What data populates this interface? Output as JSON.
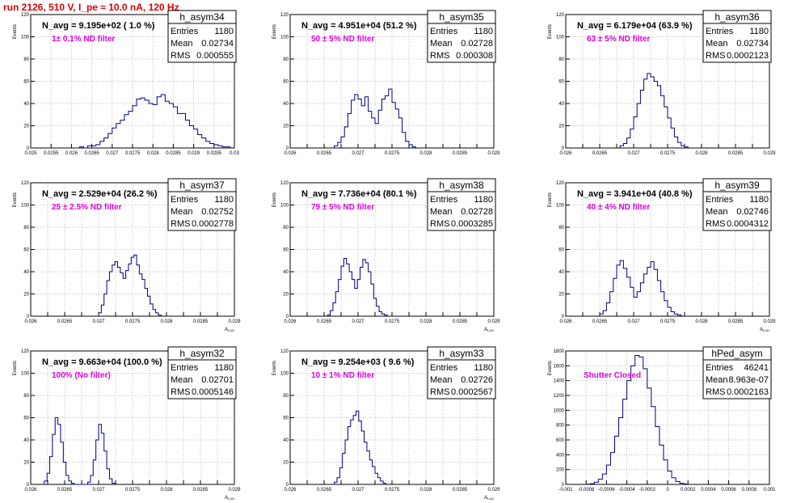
{
  "run_title": "run 2126,   510 V, I_pe ≈ 10.0 nA, 120 Hz",
  "chart_data": [
    {
      "type": "bar",
      "name": "h_asym34",
      "navg": "N_avg = 9.195e+02 ( 1.0 %)",
      "filter": "1± 0.1% ND filter",
      "stats": {
        "entries": "1180",
        "mean": "0.02734",
        "rms": "0.000555"
      },
      "xlim": [
        0.025,
        0.03
      ],
      "ylim": [
        0,
        120
      ],
      "xticks": [
        "0.025",
        "0.0255",
        "0.026",
        "0.0265",
        "0.027",
        "0.0275",
        "0.028",
        "0.0285",
        "0.029",
        "0.0295",
        "0.03"
      ],
      "yticks": [
        "0",
        "20",
        "40",
        "60",
        "80",
        "100",
        "120"
      ],
      "xlabel": "",
      "ylabel": "Events",
      "bins": {
        "lo": 0.0262,
        "width": 0.0001,
        "counts": [
          1,
          0,
          2,
          2,
          3,
          6,
          9,
          13,
          18,
          22,
          25,
          30,
          33,
          38,
          44,
          45,
          43,
          40,
          39,
          46,
          48,
          42,
          40,
          37,
          31,
          31,
          25,
          20,
          17,
          12,
          9,
          6,
          4,
          3,
          2,
          1,
          1
        ]
      }
    },
    {
      "type": "bar",
      "name": "h_asym35",
      "navg": "N_avg = 4.951e+04 (51.2 %)",
      "filter": "50 ± 5% ND filter",
      "stats": {
        "entries": "1180",
        "mean": "0.02728",
        "rms": "0.000308"
      },
      "xlim": [
        0.026,
        0.029
      ],
      "ylim": [
        0,
        120
      ],
      "xticks": [
        "0.026",
        "",
        "0.0265",
        "",
        "0.027",
        "",
        "0.0275",
        "",
        "0.028",
        "",
        "0.0285",
        "",
        "0.029"
      ],
      "yticks": [
        "0",
        "20",
        "40",
        "60",
        "80",
        "100",
        "120"
      ],
      "xlabel": "",
      "ylabel": "Events",
      "bins": {
        "lo": 0.02665,
        "width": 5e-05,
        "counts": [
          2,
          5,
          10,
          19,
          31,
          43,
          48,
          44,
          38,
          46,
          33,
          27,
          22,
          34,
          44,
          47,
          53,
          41,
          35,
          27,
          14,
          6,
          3,
          1
        ]
      }
    },
    {
      "type": "bar",
      "name": "h_asym36",
      "navg": "N_avg = 6.179e+04 (63.9 %)",
      "filter": "63 ± 5% ND filter",
      "stats": {
        "entries": "1180",
        "mean": "0.02734",
        "rms": "0.0002123"
      },
      "xlim": [
        0.026,
        0.029
      ],
      "ylim": [
        0,
        120
      ],
      "xticks": [
        "0.026",
        "",
        "0.0265",
        "",
        "0.027",
        "",
        "0.0275",
        "",
        "0.028",
        "",
        "0.0285",
        "",
        "0.029"
      ],
      "yticks": [
        "0",
        "20",
        "40",
        "60",
        "80",
        "100",
        "120"
      ],
      "xlabel": "",
      "ylabel": "Events",
      "bins": {
        "lo": 0.0268,
        "width": 5e-05,
        "counts": [
          2,
          4,
          9,
          17,
          28,
          40,
          52,
          62,
          67,
          64,
          60,
          56,
          47,
          37,
          27,
          18,
          10,
          5,
          2,
          1
        ]
      }
    },
    {
      "type": "bar",
      "name": "h_asym37",
      "navg": "N_avg = 2.529e+04 (26.2 %)",
      "filter": "25 ± 2.5% ND filter",
      "stats": {
        "entries": "1180",
        "mean": "0.02752",
        "rms": "0.0002778"
      },
      "xlim": [
        0.026,
        0.029
      ],
      "ylim": [
        0,
        120
      ],
      "xticks": [
        "0.026",
        "",
        "0.0265",
        "",
        "0.027",
        "",
        "0.0275",
        "",
        "0.028",
        "",
        "0.0285",
        "",
        "0.029"
      ],
      "yticks": [
        "0",
        "20",
        "40",
        "60",
        "80",
        "100",
        "120"
      ],
      "xlabel": "A",
      "ylabel": "Events",
      "bins": {
        "lo": 0.027,
        "width": 4e-05,
        "counts": [
          3,
          10,
          20,
          32,
          40,
          46,
          49,
          44,
          39,
          34,
          41,
          47,
          53,
          55,
          46,
          38,
          33,
          25,
          18,
          11,
          6,
          3,
          1
        ]
      }
    },
    {
      "type": "bar",
      "name": "h_asym38",
      "navg": "N_avg = 7.736e+04 (80.1 %)",
      "filter": "79 ± 5% ND filter",
      "stats": {
        "entries": "1180",
        "mean": "0.02728",
        "rms": "0.0003285"
      },
      "xlim": [
        0.026,
        0.029
      ],
      "ylim": [
        0,
        120
      ],
      "xticks": [
        "0.026",
        "",
        "0.0265",
        "",
        "0.027",
        "",
        "0.0275",
        "",
        "0.028",
        "",
        "0.0285",
        "",
        "0.029"
      ],
      "yticks": [
        "0",
        "20",
        "40",
        "60",
        "80",
        "100",
        "120"
      ],
      "xlabel": "A",
      "ylabel": "Events",
      "bins": {
        "lo": 0.02655,
        "width": 4e-05,
        "counts": [
          1,
          5,
          12,
          22,
          33,
          45,
          52,
          47,
          40,
          33,
          25,
          33,
          44,
          51,
          48,
          40,
          29,
          16,
          9,
          4,
          2,
          1
        ]
      }
    },
    {
      "type": "bar",
      "name": "h_asym39",
      "navg": "N_avg = 3.941e+04 (40.8 %)",
      "filter": "40 ± 4% ND filter",
      "stats": {
        "entries": "1180",
        "mean": "0.02746",
        "rms": "0.0004312"
      },
      "xlim": [
        0.026,
        0.029
      ],
      "ylim": [
        0,
        120
      ],
      "xticks": [
        "0.026",
        "",
        "0.0265",
        "",
        "0.027",
        "",
        "0.0275",
        "",
        "0.028",
        "",
        "0.0285",
        "",
        "0.029"
      ],
      "yticks": [
        "0",
        "20",
        "40",
        "60",
        "80",
        "100",
        "120"
      ],
      "xlabel": "A",
      "ylabel": "Events",
      "bins": {
        "lo": 0.0265,
        "width": 5e-05,
        "counts": [
          2,
          5,
          12,
          22,
          34,
          46,
          50,
          43,
          35,
          26,
          17,
          22,
          30,
          38,
          44,
          49,
          42,
          32,
          22,
          14,
          8,
          4,
          2,
          1
        ]
      }
    },
    {
      "type": "bar",
      "name": "h_asym32",
      "navg": "N_avg = 9.663e+04 (100.0 %)",
      "filter": "100% (No filter)",
      "stats": {
        "entries": "1180",
        "mean": "0.02701",
        "rms": "0.0005146"
      },
      "xlim": [
        0.026,
        0.029
      ],
      "ylim": [
        0,
        120
      ],
      "xticks": [
        "0.026",
        "",
        "0.0265",
        "",
        "0.027",
        "",
        "0.0275",
        "",
        "0.028",
        "",
        "0.0285",
        "",
        "0.029"
      ],
      "yticks": [
        "0",
        "20",
        "40",
        "60",
        "80",
        "100",
        "120"
      ],
      "xlabel": "A",
      "ylabel": "Events",
      "bins": {
        "lo": 0.0262,
        "width": 4e-05,
        "counts": [
          3,
          10,
          25,
          45,
          60,
          54,
          38,
          20,
          8,
          3,
          1,
          0,
          0,
          0,
          0,
          0,
          2,
          8,
          22,
          40,
          54,
          46,
          30,
          14,
          5,
          1
        ]
      }
    },
    {
      "type": "bar",
      "name": "h_asym33",
      "navg": "N_avg = 9.254e+03 ( 9.6 %)",
      "filter": "10 ± 1% ND filter",
      "stats": {
        "entries": "1180",
        "mean": "0.02726",
        "rms": "0.0002567"
      },
      "xlim": [
        0.026,
        0.029
      ],
      "ylim": [
        0,
        120
      ],
      "xticks": [
        "0.026",
        "",
        "0.0265",
        "",
        "0.027",
        "",
        "0.0275",
        "",
        "0.028",
        "",
        "0.0285",
        "",
        "0.029"
      ],
      "yticks": [
        "0",
        "20",
        "40",
        "60",
        "80",
        "100",
        "120"
      ],
      "xlabel": "A",
      "ylabel": "Events",
      "bins": {
        "lo": 0.02665,
        "width": 4e-05,
        "counts": [
          2,
          6,
          15,
          28,
          40,
          52,
          58,
          62,
          66,
          57,
          48,
          38,
          30,
          22,
          16,
          10,
          6,
          3,
          1
        ]
      }
    },
    {
      "type": "bar",
      "name": "hPed_asym",
      "navg": "",
      "filter": "Shutter Closed",
      "stats": {
        "entries": "46241",
        "mean": "8.963e-07",
        "rms": "0.0002163"
      },
      "xlim": [
        -0.001,
        0.001
      ],
      "ylim": [
        0,
        1800
      ],
      "xticks": [
        "-0.001",
        "-0.0008",
        "-0.0006",
        "-0.0004",
        "-0.0002",
        "0",
        "0.0002",
        "0.0004",
        "0.0006",
        "0.0008",
        "0.001"
      ],
      "yticks": [
        "0",
        "200",
        "400",
        "600",
        "800",
        "1000",
        "1200",
        "1400",
        "1600",
        "1800"
      ],
      "xlabel": "",
      "ylabel": "Events",
      "bins": {
        "lo": -0.0008,
        "width": 4e-05,
        "counts": [
          3,
          10,
          30,
          70,
          140,
          260,
          430,
          650,
          900,
          1150,
          1400,
          1600,
          1740,
          1720,
          1560,
          1300,
          1050,
          780,
          530,
          330,
          180,
          90,
          40,
          15,
          5
        ]
      }
    }
  ]
}
